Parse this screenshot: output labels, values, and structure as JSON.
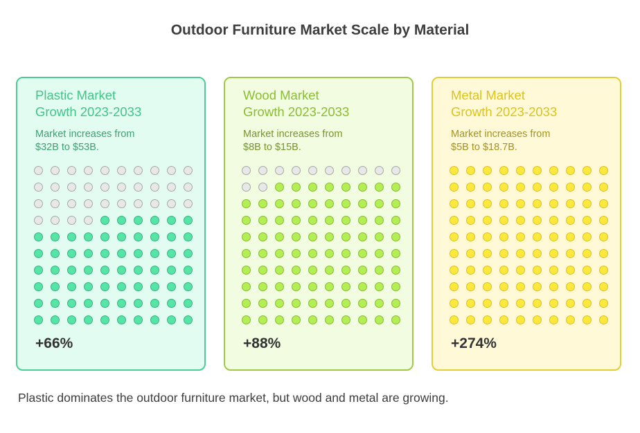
{
  "page": {
    "title": "Outdoor Furniture Market Scale by Material",
    "footer": "Plastic dominates the outdoor furniture market, but wood and metal are growing."
  },
  "chart_data": {
    "type": "waffle",
    "grid": {
      "rows": 10,
      "cols": 10,
      "total_dots": 100
    },
    "inactive_colors": {
      "fill": "#e8e8e8",
      "border": "#a7a7a7"
    },
    "panels": [
      {
        "title_line1": "Plastic Market",
        "title_line2": "Growth 2023-2033",
        "desc_line1": "Market increases from",
        "desc_line2": "$32B to $53B.",
        "growth_label": "+66%",
        "from_value": 32,
        "to_value": 53,
        "growth_percent": 66,
        "filled_dots": 66,
        "colors": {
          "background": "#e3fcf1",
          "border": "#4ccd96",
          "title": "#3fc587",
          "desc": "#3e9f72",
          "dot_fill": "#56e4a7",
          "dot_border": "#35b47c"
        }
      },
      {
        "title_line1": "Wood Market",
        "title_line2": "Growth 2023-2033",
        "desc_line1": "Market increases from",
        "desc_line2": "$8B to $15B.",
        "growth_label": "+88%",
        "from_value": 8,
        "to_value": 15,
        "growth_percent": 88,
        "filled_dots": 88,
        "colors": {
          "background": "#f2fce0",
          "border": "#9fc947",
          "title": "#8bbd33",
          "desc": "#75952d",
          "dot_fill": "#b4ee55",
          "dot_border": "#86bc2c"
        }
      },
      {
        "title_line1": "Metal Market",
        "title_line2": "Growth 2023-2033",
        "desc_line1": "Market increases from",
        "desc_line2": "$5B to $18.7B.",
        "growth_label": "+274%",
        "from_value": 5,
        "to_value": 18.7,
        "growth_percent": 274,
        "filled_dots": 100,
        "colors": {
          "background": "#fff9d8",
          "border": "#e4cf33",
          "title": "#dcc31c",
          "desc": "#a39222",
          "dot_fill": "#fde83d",
          "dot_border": "#dcc020"
        }
      }
    ]
  }
}
